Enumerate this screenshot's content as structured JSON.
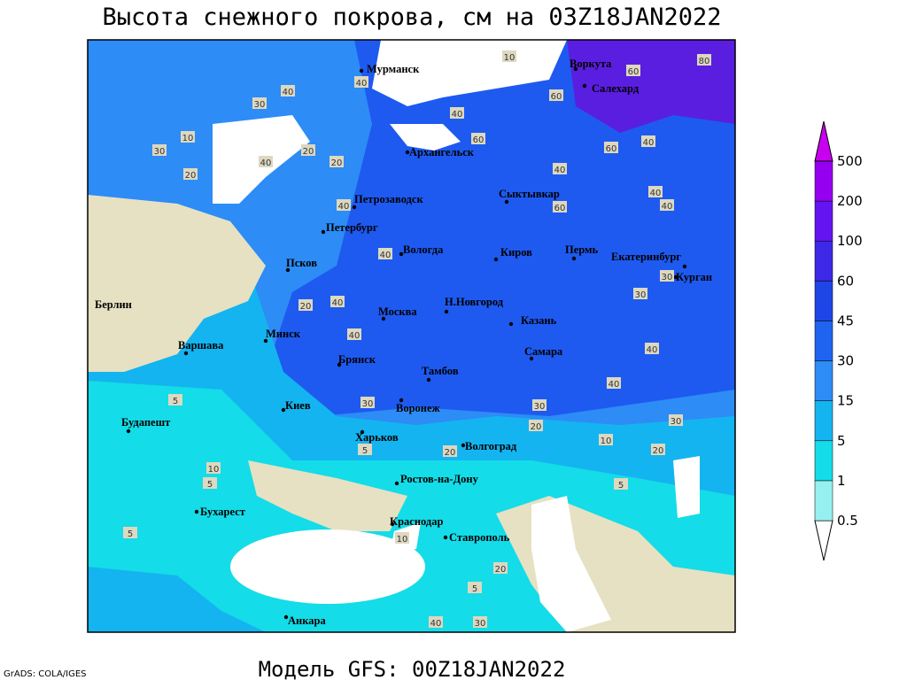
{
  "title": "Высота снежного покрова, см на 03Z18JAN2022",
  "footer": "Модель GFS: 00Z18JAN2022",
  "credit": "GrADS: COLA/IGES",
  "legend": {
    "levels": [
      0.5,
      1,
      5,
      15,
      30,
      45,
      60,
      100,
      200,
      500
    ],
    "colors": [
      "#96f0f0",
      "#14dce8",
      "#14b4f0",
      "#2d8cf5",
      "#1e64f0",
      "#1e46e6",
      "#3c28e6",
      "#6414f0",
      "#9600f0"
    ],
    "top_color": "#c800f0"
  },
  "cities": [
    "Мурманск",
    "Воркута",
    "Салехард",
    "Архангельск",
    "Сыктывкар",
    "Петрозаводск",
    "Петербург",
    "Вологда",
    "Киров",
    "Пермь",
    "Екатеринбург",
    "Курган",
    "Псков",
    "Берлин",
    "Н.Новгород",
    "Москва",
    "Казань",
    "Варшава",
    "Минск",
    "Брянск",
    "Самара",
    "Тамбов",
    "Киев",
    "Воронеж",
    "Будапешт",
    "Харьков",
    "Волгоград",
    "Ростов-на-Дону",
    "Бухарест",
    "Краснодар",
    "Ставрополь",
    "Анкара"
  ],
  "contour_labels": [
    10,
    80,
    60,
    40,
    30,
    40,
    40,
    60,
    10,
    30,
    20,
    40,
    20,
    20,
    60,
    60,
    40,
    40,
    40,
    40,
    60,
    40,
    40,
    20,
    40,
    40,
    30,
    30,
    40,
    40,
    30,
    20,
    10,
    20,
    30,
    30,
    5,
    20,
    5,
    10,
    5,
    5,
    5,
    5,
    40,
    30,
    20,
    10
  ]
}
